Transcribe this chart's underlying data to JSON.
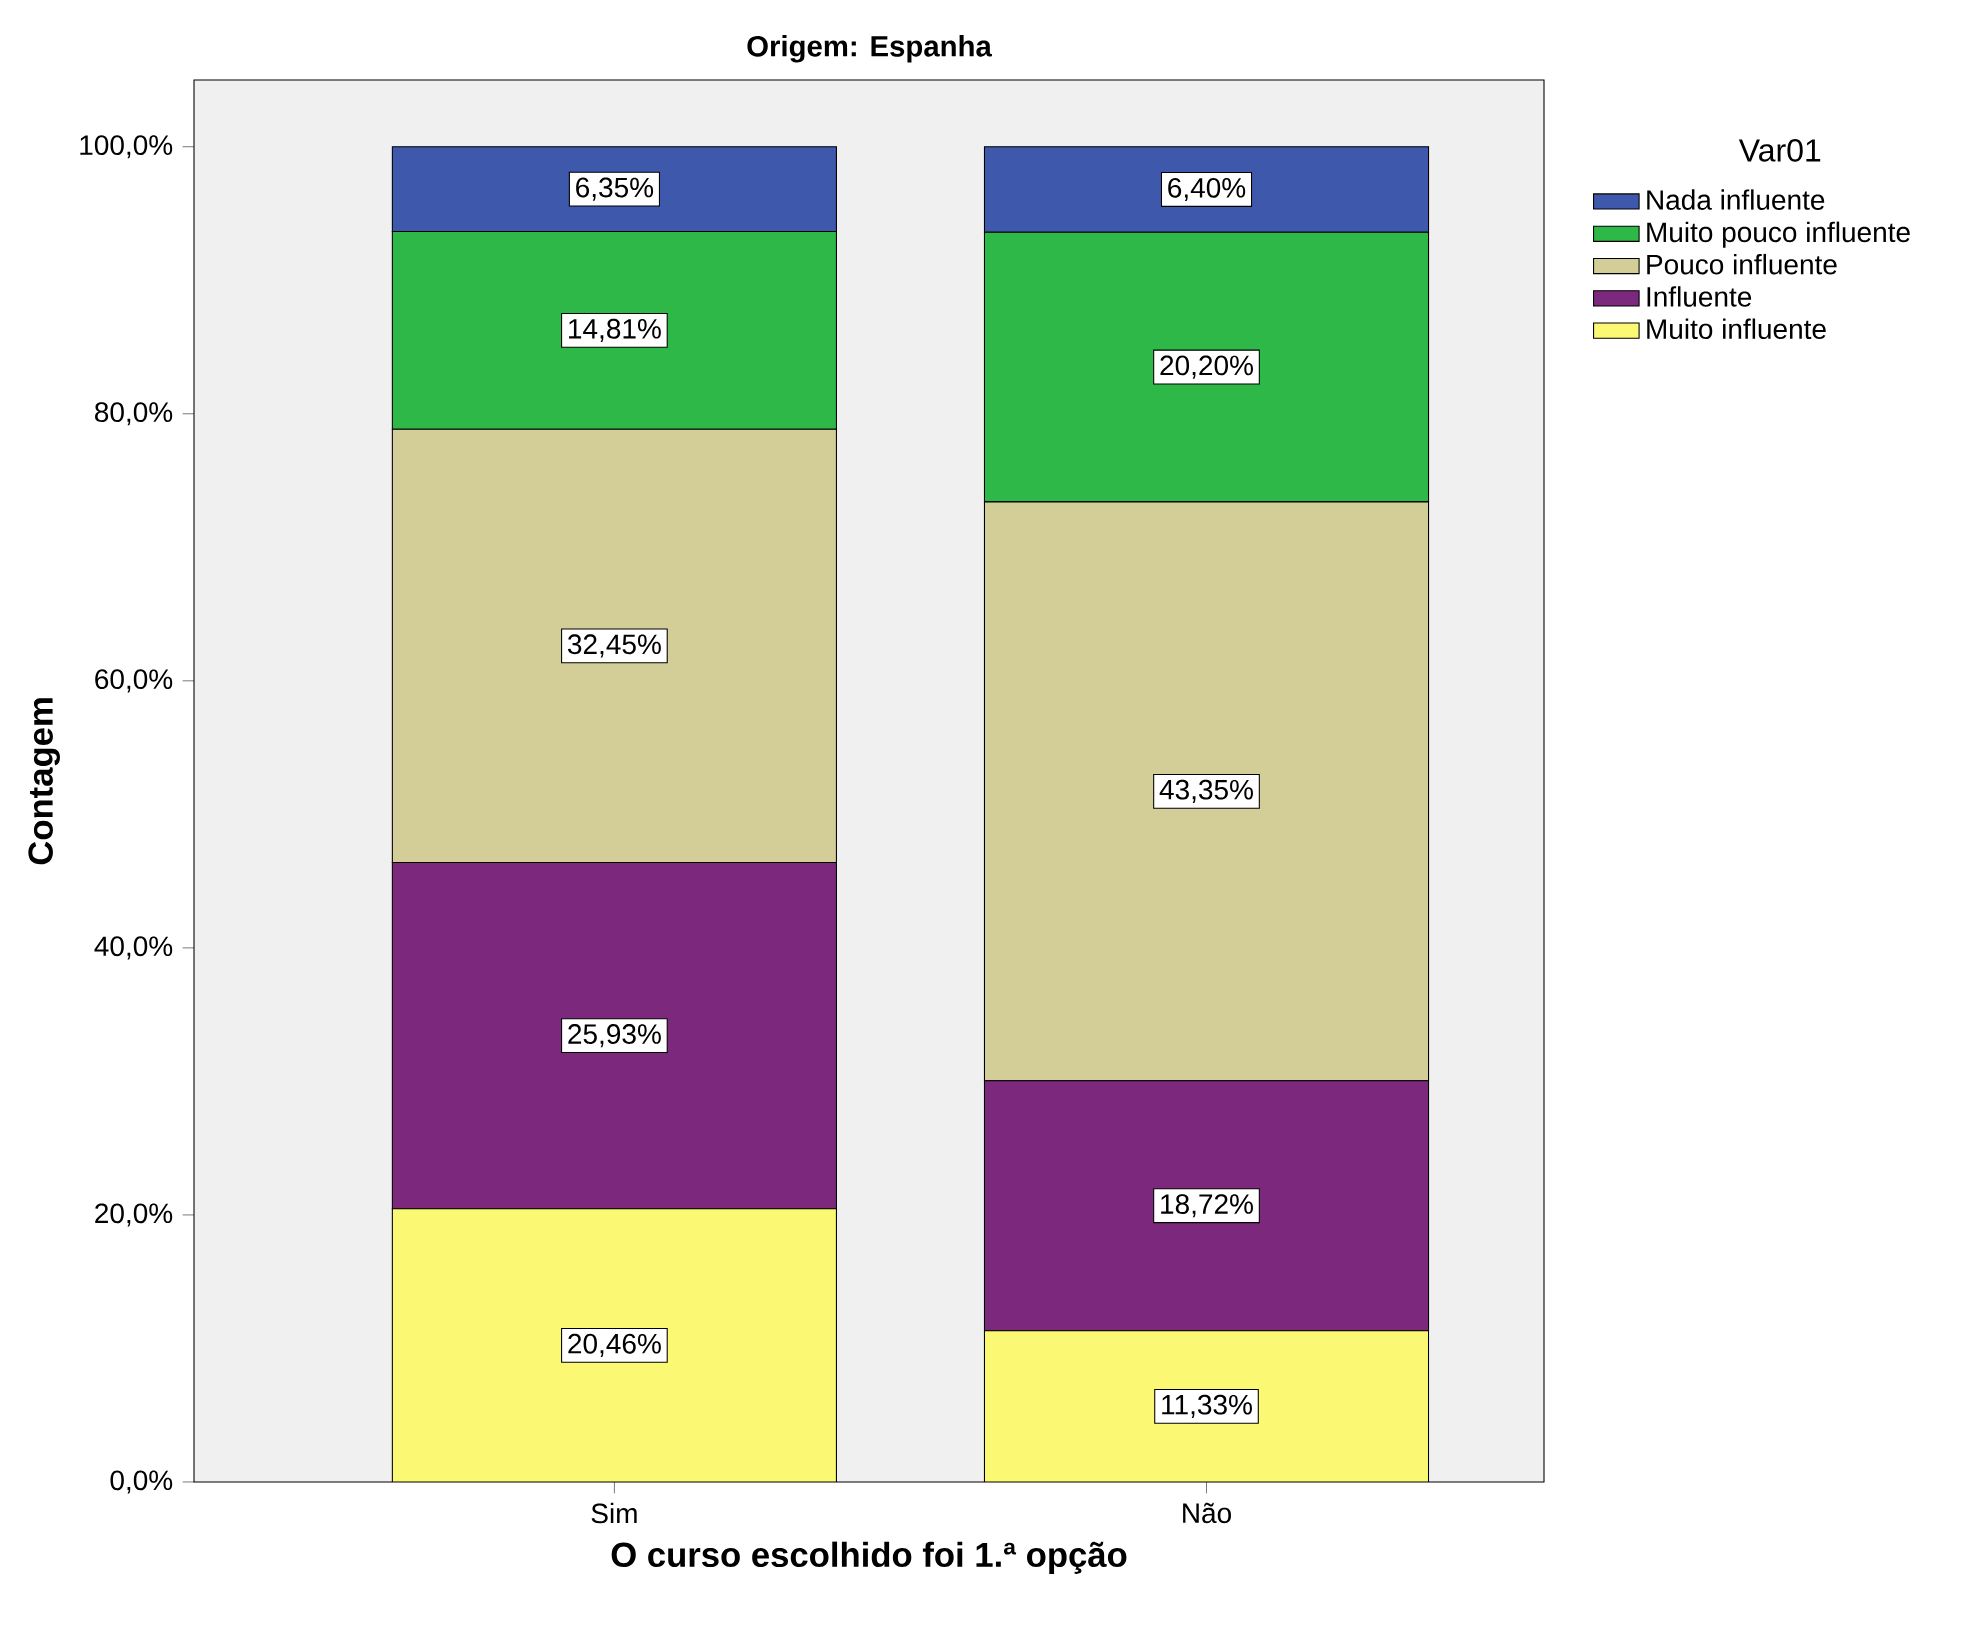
{
  "chart_data": {
    "type": "bar",
    "stacked": true,
    "title": "Origem: Espanha",
    "xlabel": "O curso escolhido foi 1.ª opção",
    "ylabel": "Contagem",
    "legend_title": "Var01",
    "legend": "right",
    "categories": [
      "Sim",
      "Não"
    ],
    "ylim": [
      0,
      105
    ],
    "yticks": [
      {
        "value": 0,
        "label": "0,0%"
      },
      {
        "value": 20,
        "label": "20,0%"
      },
      {
        "value": 40,
        "label": "40,0%"
      },
      {
        "value": 60,
        "label": "60,0%"
      },
      {
        "value": 80,
        "label": "80,0%"
      },
      {
        "value": 100,
        "label": "100,0%"
      }
    ],
    "series": [
      {
        "name": "Muito influente",
        "color": "#fbf873",
        "values": [
          20.46,
          11.33
        ],
        "value_labels": [
          "20,46%",
          "11,33%"
        ]
      },
      {
        "name": "Influente",
        "color": "#7c287d",
        "values": [
          25.93,
          18.72
        ],
        "value_labels": [
          "25,93%",
          "18,72%"
        ]
      },
      {
        "name": "Pouco influente",
        "color": "#d3ce97",
        "values": [
          32.45,
          43.35
        ],
        "value_labels": [
          "32,45%",
          "43,35%"
        ]
      },
      {
        "name": "Muito pouco influente",
        "color": "#2eb848",
        "values": [
          14.81,
          20.2
        ],
        "value_labels": [
          "14,81%",
          "20,20%"
        ]
      },
      {
        "name": "Nada influente",
        "color": "#3e58ac",
        "values": [
          6.35,
          6.4
        ],
        "value_labels": [
          "6,35%",
          "6,40%"
        ]
      }
    ]
  }
}
